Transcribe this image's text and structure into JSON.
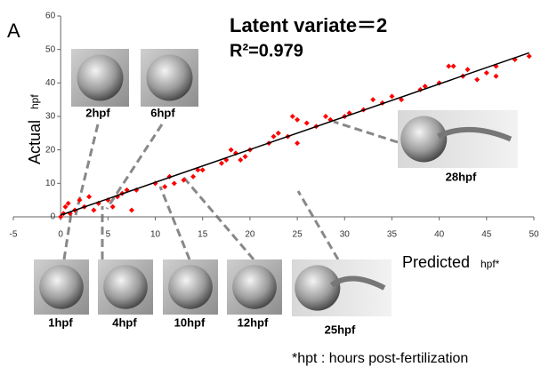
{
  "chart_data": {
    "type": "scatter",
    "panel_label": "A",
    "title": "Latent variate＝2",
    "subtitle": "R²=0.979",
    "x_label": "Predicted",
    "x_label_unit": "hpf*",
    "y_label": "Actual",
    "y_label_unit": "hpf",
    "footnote": "*hpt :  hours post-fertilization",
    "xlim": [
      -5,
      50
    ],
    "xticks": [
      -5,
      0,
      5,
      10,
      15,
      20,
      25,
      30,
      35,
      40,
      45,
      50
    ],
    "ylim": [
      0,
      60
    ],
    "yticks": [
      0,
      10,
      20,
      30,
      40,
      50,
      60
    ],
    "series": [
      {
        "color": "#ff0000",
        "x": [
          0,
          0.3,
          0.5,
          0.8,
          1,
          1.5,
          2,
          2.5,
          3,
          3.5,
          4,
          5,
          5.5,
          6,
          6.5,
          7,
          7.5,
          8,
          10,
          11,
          11.5,
          12,
          13,
          14,
          14.5,
          15,
          17,
          17.5,
          18,
          18.5,
          19,
          19.5,
          20,
          22,
          22.5,
          23,
          24,
          24.5,
          25,
          25,
          26,
          27,
          28,
          28.5,
          30,
          30.5,
          32,
          33,
          34,
          35,
          36,
          38,
          38.5,
          40,
          41,
          41.5,
          42.5,
          43,
          44,
          45,
          46,
          46,
          48,
          49.5
        ],
        "values": [
          0,
          1,
          3,
          4,
          1,
          2,
          5,
          3,
          6,
          2,
          4,
          5,
          3,
          6,
          7,
          8,
          2,
          8,
          10,
          9,
          12,
          10,
          11,
          12,
          14,
          14,
          16,
          17,
          20,
          19,
          17,
          18,
          20,
          22,
          24,
          25,
          24,
          30,
          29,
          22,
          28,
          27,
          30,
          29,
          30,
          31,
          32,
          35,
          34,
          36,
          35,
          38,
          39,
          40,
          45,
          45,
          42,
          44,
          41,
          43,
          42,
          45,
          47,
          48
        ]
      }
    ],
    "fit": {
      "color": "#000000",
      "x": [
        0,
        49.5
      ],
      "values": [
        0.5,
        49
      ]
    },
    "image_labels": [
      "2hpf",
      "6hpf",
      "1hpf",
      "4hpf",
      "10hpf",
      "12hpf",
      "25hpf",
      "28hpf"
    ]
  }
}
